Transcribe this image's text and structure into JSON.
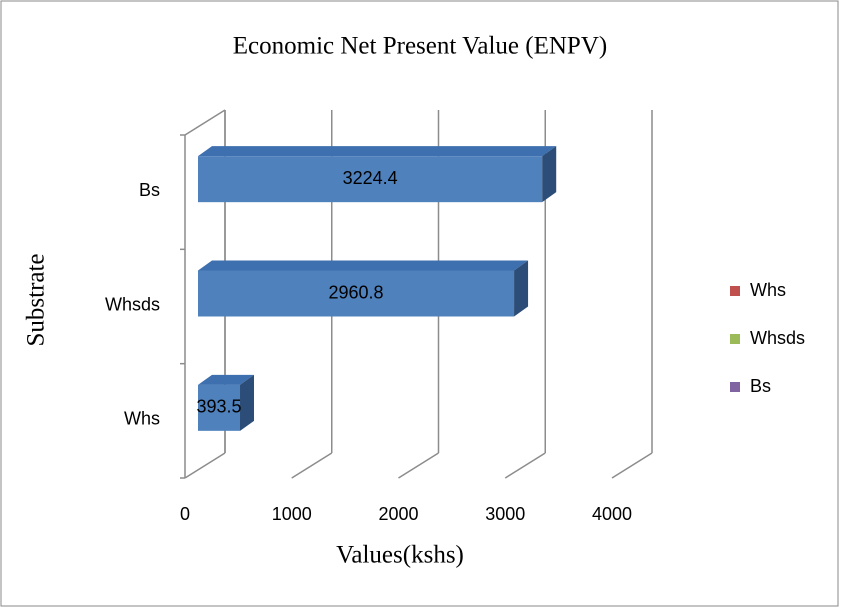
{
  "chart_data": {
    "type": "bar3d_horizontal",
    "title": "Economic  Net Present Value (ENPV)",
    "x_label": "Values(kshs)",
    "y_label": "Substrate",
    "categories": [
      "Whs",
      "Whsds",
      "Bs"
    ],
    "values": [
      393.5,
      2960.8,
      3224.4
    ],
    "color": "#4f81bd",
    "xlim": [
      0,
      4000
    ],
    "xticks": [
      0,
      1000,
      2000,
      3000,
      4000
    ],
    "grid": true,
    "legend_position": "right",
    "legend": [
      {
        "name": "Whs",
        "color": "#c0504d"
      },
      {
        "name": "Whsds",
        "color": "#9bbb59"
      },
      {
        "name": "Bs",
        "color": "#8064a2"
      }
    ]
  }
}
